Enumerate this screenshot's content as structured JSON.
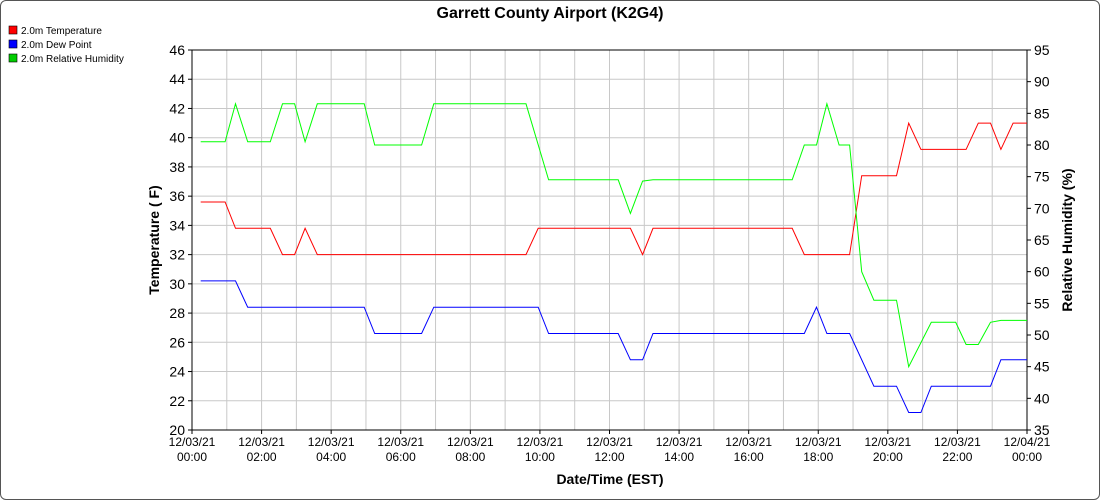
{
  "chart_data": {
    "type": "line",
    "title": "Garrett County Airport (K2G4)",
    "xlabel": "Date/Time (EST)",
    "ylabel_left": "Temperature ( F)",
    "ylabel_right": "Relative Humidity (%)",
    "ylim_left": [
      20,
      46
    ],
    "ylim_right": [
      35,
      95
    ],
    "yticks_left": [
      20,
      22,
      24,
      26,
      28,
      30,
      32,
      34,
      36,
      38,
      40,
      42,
      44,
      46
    ],
    "yticks_right": [
      35,
      40,
      45,
      50,
      55,
      60,
      65,
      70,
      75,
      80,
      85,
      90,
      95
    ],
    "xlim_hours": [
      0,
      24
    ],
    "xticks": [
      {
        "h": 0,
        "date": "12/03/21",
        "time": "00:00"
      },
      {
        "h": 2,
        "date": "12/03/21",
        "time": "02:00"
      },
      {
        "h": 4,
        "date": "12/03/21",
        "time": "04:00"
      },
      {
        "h": 6,
        "date": "12/03/21",
        "time": "06:00"
      },
      {
        "h": 8,
        "date": "12/03/21",
        "time": "08:00"
      },
      {
        "h": 10,
        "date": "12/03/21",
        "time": "10:00"
      },
      {
        "h": 12,
        "date": "12/03/21",
        "time": "12:00"
      },
      {
        "h": 14,
        "date": "12/03/21",
        "time": "14:00"
      },
      {
        "h": 16,
        "date": "12/03/21",
        "time": "16:00"
      },
      {
        "h": 18,
        "date": "12/03/21",
        "time": "18:00"
      },
      {
        "h": 20,
        "date": "12/03/21",
        "time": "20:00"
      },
      {
        "h": 22,
        "date": "12/03/21",
        "time": "22:00"
      },
      {
        "h": 24,
        "date": "12/04/21",
        "time": "00:00"
      }
    ],
    "grid": true,
    "legend_position": "top-left",
    "series": [
      {
        "name": "2.0m Temperature",
        "axis": "left",
        "color": "#ff0000",
        "points": [
          [
            0.25,
            35.6
          ],
          [
            0.95,
            35.6
          ],
          [
            1.25,
            33.8
          ],
          [
            2.25,
            33.8
          ],
          [
            2.6,
            32.0
          ],
          [
            2.95,
            32.0
          ],
          [
            3.25,
            33.8
          ],
          [
            3.6,
            32.0
          ],
          [
            9.6,
            32.0
          ],
          [
            9.95,
            33.8
          ],
          [
            12.6,
            33.8
          ],
          [
            12.95,
            32.0
          ],
          [
            13.25,
            33.8
          ],
          [
            17.25,
            33.8
          ],
          [
            17.6,
            32.0
          ],
          [
            18.9,
            32.0
          ],
          [
            19.25,
            37.4
          ],
          [
            20.25,
            37.4
          ],
          [
            20.6,
            41.0
          ],
          [
            20.95,
            39.2
          ],
          [
            21.25,
            39.2
          ],
          [
            22.25,
            39.2
          ],
          [
            22.6,
            41.0
          ],
          [
            22.95,
            41.0
          ],
          [
            23.25,
            39.2
          ],
          [
            23.6,
            41.0
          ],
          [
            24.0,
            41.0
          ]
        ]
      },
      {
        "name": "2.0m Dew Point",
        "axis": "left",
        "color": "#0000ff",
        "points": [
          [
            0.25,
            30.2
          ],
          [
            1.25,
            30.2
          ],
          [
            1.6,
            28.4
          ],
          [
            4.95,
            28.4
          ],
          [
            5.25,
            26.6
          ],
          [
            6.6,
            26.6
          ],
          [
            6.95,
            28.4
          ],
          [
            9.95,
            28.4
          ],
          [
            10.25,
            26.6
          ],
          [
            12.25,
            26.6
          ],
          [
            12.6,
            24.8
          ],
          [
            12.95,
            24.8
          ],
          [
            13.25,
            26.6
          ],
          [
            17.6,
            26.6
          ],
          [
            17.95,
            28.4
          ],
          [
            18.25,
            26.6
          ],
          [
            18.9,
            26.6
          ],
          [
            19.6,
            23.0
          ],
          [
            20.25,
            23.0
          ],
          [
            20.6,
            21.2
          ],
          [
            20.95,
            21.2
          ],
          [
            21.25,
            23.0
          ],
          [
            22.95,
            23.0
          ],
          [
            23.25,
            24.8
          ],
          [
            24.0,
            24.8
          ]
        ]
      },
      {
        "name": "2.0m Relative Humidity",
        "axis": "right",
        "color": "#00ff00",
        "points": [
          [
            0.25,
            80.5
          ],
          [
            0.95,
            80.5
          ],
          [
            1.25,
            86.5
          ],
          [
            1.6,
            80.5
          ],
          [
            2.25,
            80.5
          ],
          [
            2.6,
            86.5
          ],
          [
            2.95,
            86.5
          ],
          [
            3.25,
            80.5
          ],
          [
            3.6,
            86.5
          ],
          [
            4.95,
            86.5
          ],
          [
            5.25,
            80.0
          ],
          [
            6.6,
            80.0
          ],
          [
            6.95,
            86.5
          ],
          [
            9.6,
            86.5
          ],
          [
            10.25,
            74.5
          ],
          [
            12.25,
            74.5
          ],
          [
            12.6,
            69.2
          ],
          [
            12.95,
            74.3
          ],
          [
            13.25,
            74.5
          ],
          [
            17.25,
            74.5
          ],
          [
            17.6,
            80.0
          ],
          [
            17.95,
            80.0
          ],
          [
            18.25,
            86.5
          ],
          [
            18.6,
            80.0
          ],
          [
            18.9,
            80.0
          ],
          [
            19.25,
            60.0
          ],
          [
            19.6,
            55.5
          ],
          [
            20.25,
            55.5
          ],
          [
            20.6,
            45.0
          ],
          [
            21.25,
            52.0
          ],
          [
            21.95,
            52.0
          ],
          [
            22.25,
            48.5
          ],
          [
            22.6,
            48.5
          ],
          [
            22.95,
            52.0
          ],
          [
            23.25,
            52.3
          ],
          [
            24.0,
            52.3
          ]
        ]
      }
    ]
  }
}
